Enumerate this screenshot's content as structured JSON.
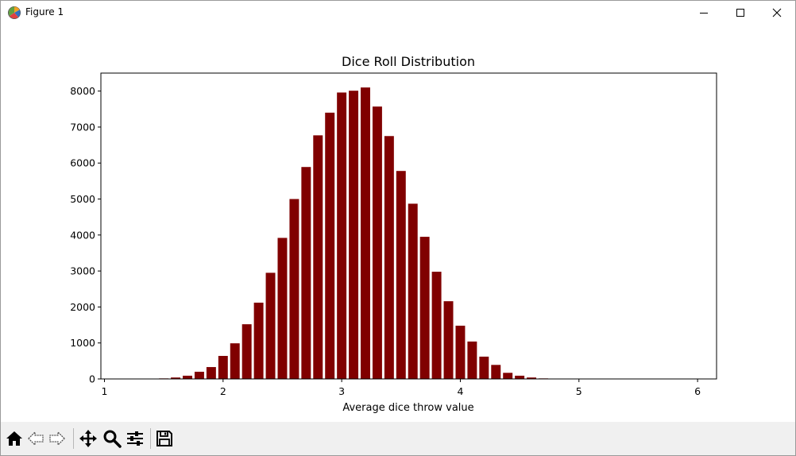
{
  "window": {
    "title": "Figure 1",
    "icons": {
      "app": "matplotlib-figure-icon",
      "minimize": "minimize-icon",
      "maximize": "maximize-icon",
      "close": "close-icon"
    }
  },
  "toolbar": {
    "buttons": [
      {
        "name": "home-button",
        "icon": "home-icon"
      },
      {
        "name": "back-button",
        "icon": "arrow-left-icon"
      },
      {
        "name": "forward-button",
        "icon": "arrow-right-icon"
      },
      {
        "name": "pan-button",
        "icon": "move-icon"
      },
      {
        "name": "zoom-button",
        "icon": "magnifier-icon"
      },
      {
        "name": "configure-subplots-button",
        "icon": "sliders-icon"
      },
      {
        "name": "save-button",
        "icon": "floppy-disk-icon"
      }
    ]
  },
  "chart_data": {
    "type": "bar",
    "title": "Dice Roll Distribution",
    "xlabel": "Average dice throw value",
    "ylabel": "",
    "xlim": [
      0.97,
      6.16
    ],
    "ylim": [
      0,
      8500
    ],
    "xticks": [
      1,
      2,
      3,
      4,
      5,
      6
    ],
    "yticks": [
      0,
      1000,
      2000,
      3000,
      4000,
      5000,
      6000,
      7000,
      8000
    ],
    "bar_color": "#800000",
    "bar_width": 0.1,
    "grid": false,
    "x": [
      1.0,
      1.1,
      1.2,
      1.3,
      1.4,
      1.5,
      1.6,
      1.7,
      1.8,
      1.9,
      2.0,
      2.1,
      2.2,
      2.3,
      2.4,
      2.5,
      2.6,
      2.7,
      2.8,
      2.9,
      3.0,
      3.1,
      3.2,
      3.3,
      3.4,
      3.5,
      3.6,
      3.7,
      3.8,
      3.9,
      4.0,
      4.1,
      4.2,
      4.3,
      4.4,
      4.5,
      4.6,
      4.7,
      4.8,
      4.9,
      5.0,
      5.1,
      5.2,
      5.3,
      5.4,
      5.5,
      5.6,
      5.7,
      5.8,
      5.9,
      6.0
    ],
    "values": [
      0,
      0,
      0,
      0,
      0,
      15,
      40,
      90,
      200,
      330,
      640,
      990,
      1520,
      2120,
      2950,
      3920,
      5000,
      5890,
      6770,
      7400,
      7960,
      8010,
      8100,
      7570,
      6750,
      5780,
      4870,
      3950,
      2980,
      2160,
      1480,
      1040,
      620,
      390,
      170,
      90,
      40,
      15,
      0,
      0,
      0,
      0,
      0,
      0,
      0,
      0,
      0,
      0,
      0,
      0,
      0
    ]
  }
}
